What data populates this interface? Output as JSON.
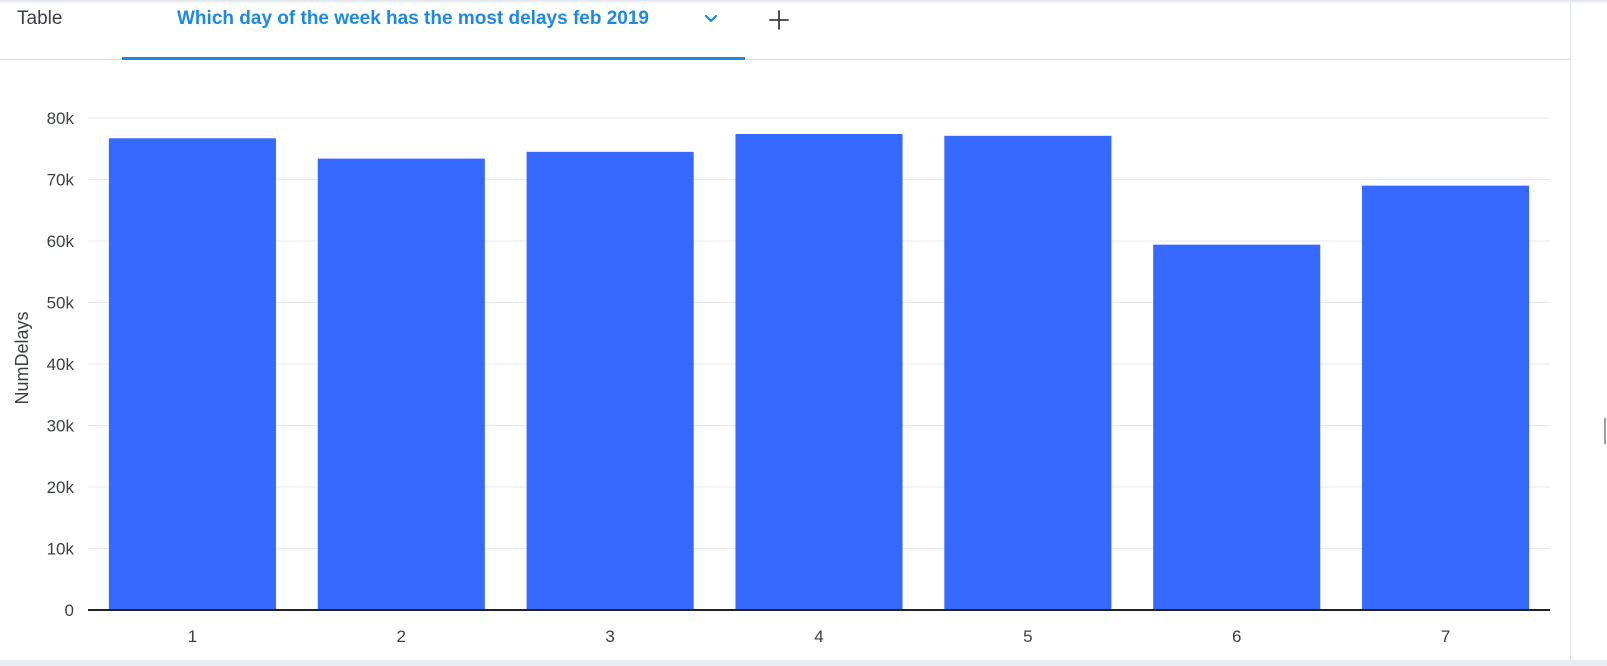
{
  "tabs": {
    "table_label": "Table",
    "active_label": "Which day of the week has the most delays feb 2019",
    "add_icon": "plus-icon",
    "dropdown_icon": "chevron-down-icon"
  },
  "colors": {
    "accent": "#1e88e5",
    "bar": "#3669ff",
    "grid": "#e8e8e8",
    "axis": "#222222",
    "text": "#3b3f45"
  },
  "chart_data": {
    "type": "bar",
    "title": "",
    "xlabel": "",
    "ylabel": "NumDelays",
    "categories": [
      "1",
      "2",
      "3",
      "4",
      "5",
      "6",
      "7"
    ],
    "values": [
      76700,
      73400,
      74500,
      77400,
      77100,
      59400,
      69000
    ],
    "ylim": [
      0,
      80000
    ],
    "yticks": [
      0,
      10000,
      20000,
      30000,
      40000,
      50000,
      60000,
      70000,
      80000
    ],
    "ytick_labels": [
      "0",
      "10k",
      "20k",
      "30k",
      "40k",
      "50k",
      "60k",
      "70k",
      "80k"
    ],
    "grid": true,
    "legend": "none"
  }
}
